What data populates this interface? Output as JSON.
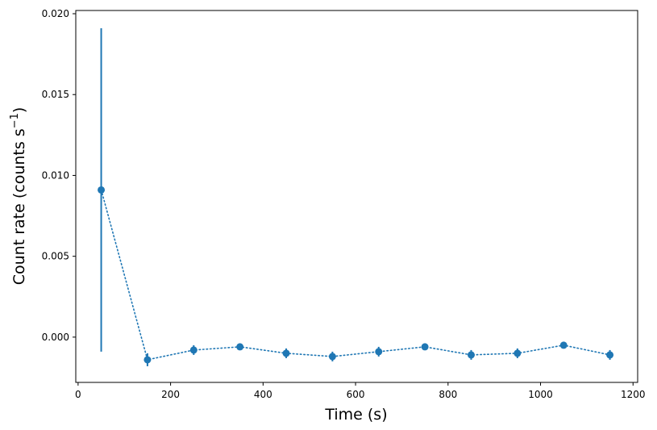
{
  "chart_data": {
    "type": "scatter",
    "xlabel": "Time (s)",
    "ylabel": {
      "prefix": "Count rate (counts s",
      "superscript": "−1",
      "suffix": ")"
    },
    "xlim": [
      -5,
      1210
    ],
    "ylim": [
      -0.0028,
      0.0202
    ],
    "xticks": [
      0,
      200,
      400,
      600,
      800,
      1000,
      1200
    ],
    "xtick_labels": [
      "0",
      "200",
      "400",
      "600",
      "800",
      "1000",
      "1200"
    ],
    "yticks": [
      0.0,
      0.005,
      0.01,
      0.015,
      0.02
    ],
    "ytick_labels": [
      "0.000",
      "0.005",
      "0.010",
      "0.015",
      "0.020"
    ],
    "grid": false,
    "line_style": "dotted",
    "color": "#1f77b4",
    "series": [
      {
        "x": [
          50,
          150,
          250,
          350,
          450,
          550,
          650,
          750,
          850,
          950,
          1050,
          1150
        ],
        "y": [
          0.0091,
          -0.0014,
          -0.0008,
          -0.0006,
          -0.001,
          -0.0012,
          -0.0009,
          -0.0006,
          -0.0011,
          -0.001,
          -0.0005,
          -0.0011
        ],
        "yerr": [
          0.01,
          0.0004,
          0.0003,
          0.0002,
          0.0003,
          0.0003,
          0.0003,
          0.0002,
          0.0003,
          0.0003,
          0.0002,
          0.0003
        ]
      }
    ]
  }
}
